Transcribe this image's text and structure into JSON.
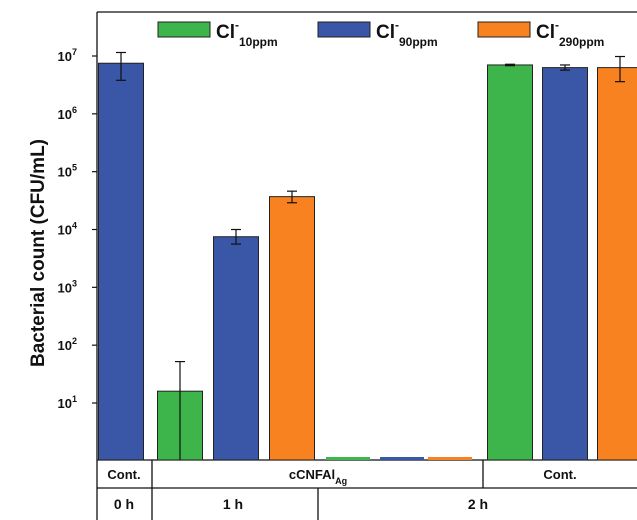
{
  "chart_data": {
    "type": "bar",
    "ylabel": "Bacterial count (CFU/mL)",
    "yscale": "log",
    "ylim": [
      1,
      20000000
    ],
    "yticks": [
      {
        "base": "10",
        "exp": "1",
        "value": 10
      },
      {
        "base": "10",
        "exp": "2",
        "value": 100
      },
      {
        "base": "10",
        "exp": "3",
        "value": 1000
      },
      {
        "base": "10",
        "exp": "4",
        "value": 10000
      },
      {
        "base": "10",
        "exp": "5",
        "value": 100000
      },
      {
        "base": "10",
        "exp": "6",
        "value": 1000000
      },
      {
        "base": "10",
        "exp": "7",
        "value": 10000000
      }
    ],
    "legend": [
      {
        "main": "Cl",
        "sup": "-",
        "sub": "10ppm",
        "color": "#3db54a"
      },
      {
        "main": "Cl",
        "sup": "-",
        "sub": "90ppm",
        "color": "#3a56a6"
      },
      {
        "main": "Cl",
        "sup": "-",
        "sub": "290ppm",
        "color": "#f7821f"
      }
    ],
    "groups": [
      {
        "label": "Cont.",
        "sub": ""
      },
      {
        "label": "cCNFAl",
        "sub": "Ag"
      },
      {
        "label": "Cont.",
        "sub": ""
      }
    ],
    "times": [
      "0 h",
      "1 h",
      "2 h"
    ],
    "bars": [
      {
        "series": "Cl- 90ppm",
        "time": "0 h",
        "value": 7500000,
        "err_low": 3800000,
        "err_high": 11500000
      },
      {
        "series": "Cl- 10ppm",
        "time": "1 h",
        "value": 16,
        "err_low": 1,
        "err_high": 52
      },
      {
        "series": "Cl- 90ppm",
        "time": "1 h",
        "value": 7500,
        "err_low": 5600,
        "err_high": 10000
      },
      {
        "series": "Cl- 290ppm",
        "time": "1 h",
        "value": 37000,
        "err_low": 29000,
        "err_high": 46000
      },
      {
        "series": "Cl- 10ppm",
        "time": "2 h",
        "value": 0,
        "err_low": null,
        "err_high": null
      },
      {
        "series": "Cl- 90ppm",
        "time": "2 h",
        "value": 0,
        "err_low": null,
        "err_high": null
      },
      {
        "series": "Cl- 290ppm",
        "time": "2 h",
        "value": 0,
        "err_low": null,
        "err_high": null
      },
      {
        "series": "Cl- 10ppm",
        "time": "2 h",
        "value": 7000000,
        "err_low": 6800000,
        "err_high": 7200000
      },
      {
        "series": "Cl- 90ppm",
        "time": "2 h",
        "value": 6300000,
        "err_low": 5700000,
        "err_high": 7000000
      },
      {
        "series": "Cl- 290ppm",
        "time": "2 h",
        "value": 6300000,
        "err_low": 3600000,
        "err_high": 9800000
      }
    ],
    "colors": {
      "Cl- 10ppm": "#3db54a",
      "Cl- 90ppm": "#3a56a6",
      "Cl- 290ppm": "#f7821f"
    }
  }
}
